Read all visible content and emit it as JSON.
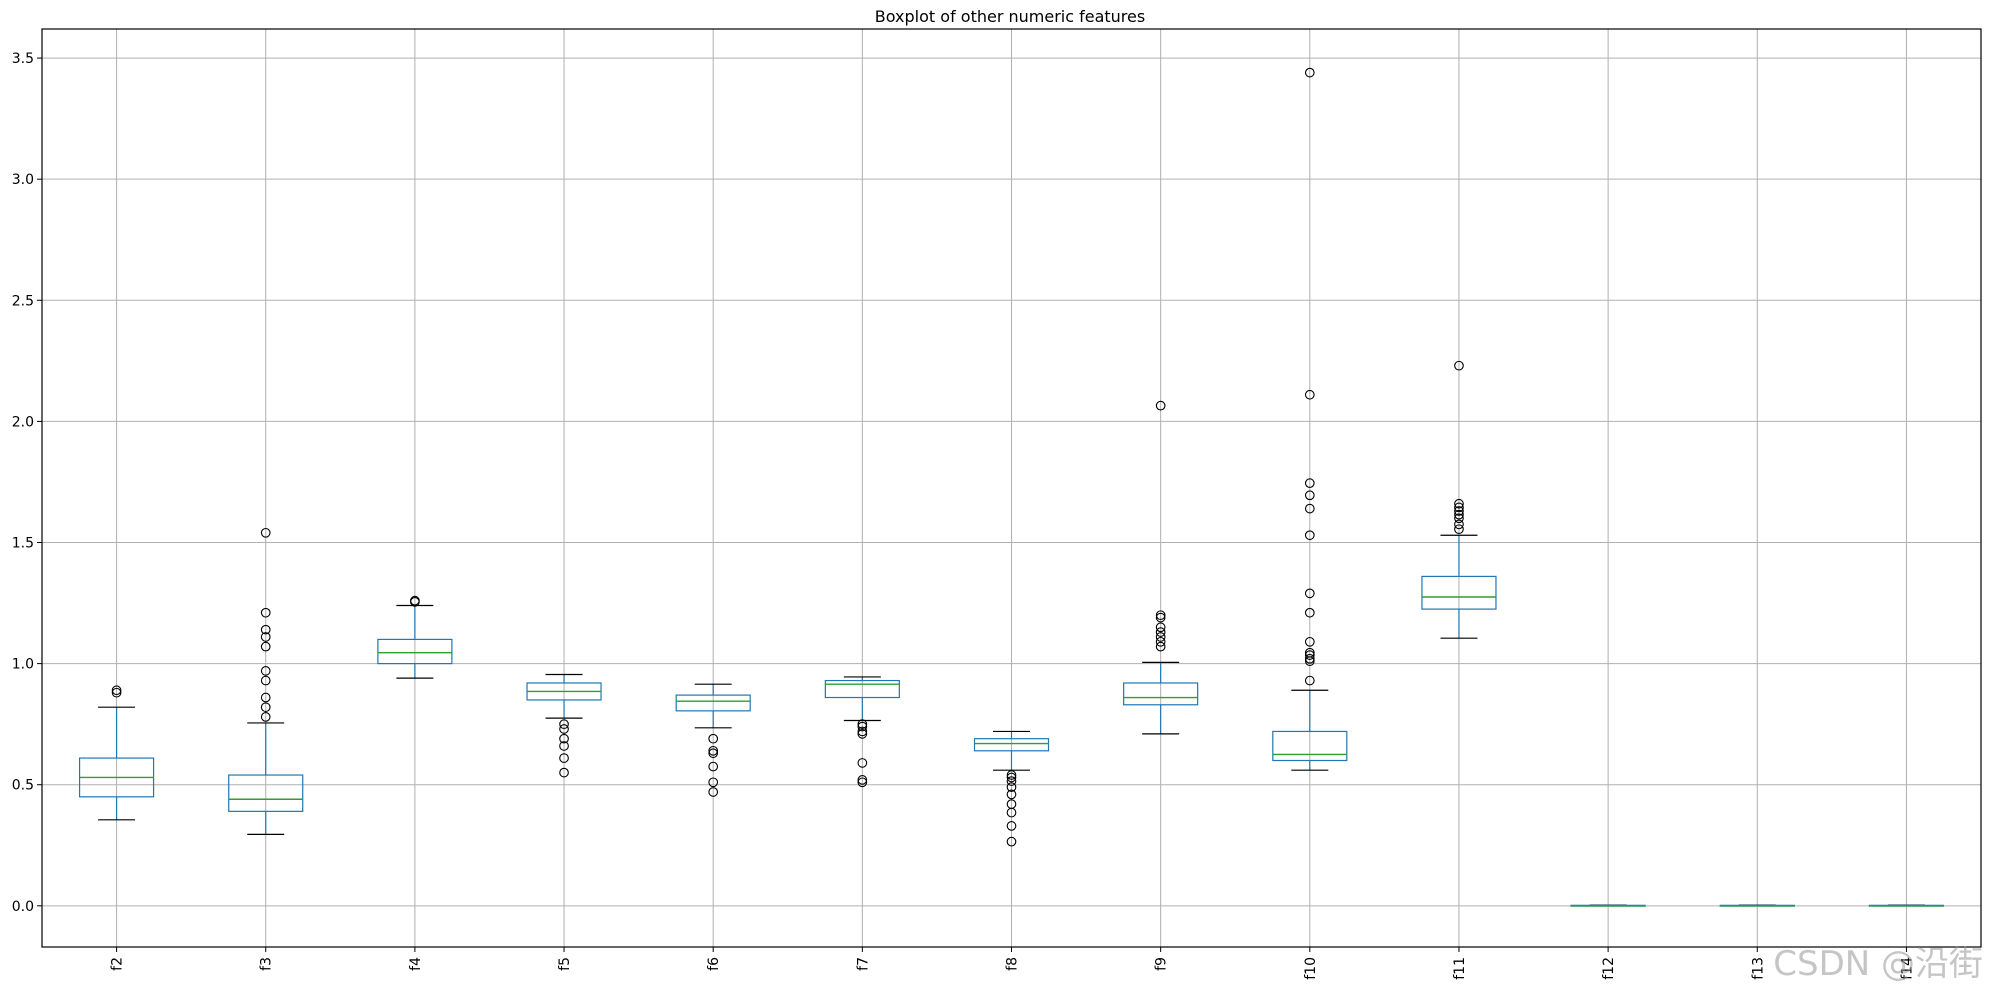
{
  "chart_data": {
    "type": "boxplot",
    "title": "Boxplot of other numeric features",
    "xlabel": "",
    "ylabel": "",
    "ylim": [
      -0.17,
      3.62
    ],
    "yticks": [
      0.0,
      0.5,
      1.0,
      1.5,
      2.0,
      2.5,
      3.0,
      3.5
    ],
    "ytick_labels": [
      "0.0",
      "0.5",
      "1.0",
      "1.5",
      "2.0",
      "2.5",
      "3.0",
      "3.5"
    ],
    "grid": true,
    "categories": [
      "f2",
      "f3",
      "f4",
      "f5",
      "f6",
      "f7",
      "f8",
      "f9",
      "f10",
      "f11",
      "f12",
      "f13",
      "f14"
    ],
    "boxes": [
      {
        "name": "f2",
        "whislo": 0.355,
        "q1": 0.45,
        "median": 0.53,
        "q3": 0.61,
        "whishi": 0.82,
        "fliers": [
          0.88,
          0.89
        ]
      },
      {
        "name": "f3",
        "whislo": 0.295,
        "q1": 0.39,
        "median": 0.44,
        "q3": 0.54,
        "whishi": 0.755,
        "fliers": [
          0.78,
          0.82,
          0.86,
          0.93,
          0.97,
          1.07,
          1.11,
          1.14,
          1.21,
          1.54
        ]
      },
      {
        "name": "f4",
        "whislo": 0.94,
        "q1": 1.0,
        "median": 1.045,
        "q3": 1.1,
        "whishi": 1.24,
        "fliers": [
          1.255,
          1.26
        ]
      },
      {
        "name": "f5",
        "whislo": 0.775,
        "q1": 0.85,
        "median": 0.885,
        "q3": 0.92,
        "whishi": 0.955,
        "fliers": [
          0.55,
          0.61,
          0.66,
          0.69,
          0.73,
          0.75
        ]
      },
      {
        "name": "f6",
        "whislo": 0.735,
        "q1": 0.805,
        "median": 0.845,
        "q3": 0.87,
        "whishi": 0.915,
        "fliers": [
          0.47,
          0.51,
          0.575,
          0.63,
          0.64,
          0.69
        ]
      },
      {
        "name": "f7",
        "whislo": 0.765,
        "q1": 0.86,
        "median": 0.915,
        "q3": 0.93,
        "whishi": 0.945,
        "fliers": [
          0.51,
          0.52,
          0.59,
          0.71,
          0.72,
          0.74,
          0.75
        ]
      },
      {
        "name": "f8",
        "whislo": 0.56,
        "q1": 0.64,
        "median": 0.67,
        "q3": 0.69,
        "whishi": 0.72,
        "fliers": [
          0.265,
          0.33,
          0.385,
          0.42,
          0.46,
          0.49,
          0.515,
          0.53,
          0.54
        ]
      },
      {
        "name": "f9",
        "whislo": 0.71,
        "q1": 0.83,
        "median": 0.86,
        "q3": 0.92,
        "whishi": 1.005,
        "fliers": [
          1.07,
          1.09,
          1.11,
          1.13,
          1.15,
          1.19,
          1.2,
          2.065
        ]
      },
      {
        "name": "f10",
        "whislo": 0.56,
        "q1": 0.6,
        "median": 0.625,
        "q3": 0.72,
        "whishi": 0.89,
        "fliers": [
          0.93,
          1.01,
          1.02,
          1.035,
          1.045,
          1.09,
          1.21,
          1.29,
          1.53,
          1.64,
          1.695,
          1.745,
          2.11,
          3.44
        ]
      },
      {
        "name": "f11",
        "whislo": 1.105,
        "q1": 1.225,
        "median": 1.275,
        "q3": 1.36,
        "whishi": 1.53,
        "fliers": [
          1.555,
          1.575,
          1.6,
          1.615,
          1.63,
          1.645,
          1.66,
          2.23
        ]
      },
      {
        "name": "f12",
        "whislo": 0.0,
        "q1": 0.0,
        "median": 0.0,
        "q3": 0.002,
        "whishi": 0.003,
        "fliers": []
      },
      {
        "name": "f13",
        "whislo": 0.0,
        "q1": 0.0,
        "median": 0.0,
        "q3": 0.002,
        "whishi": 0.003,
        "fliers": []
      },
      {
        "name": "f14",
        "whislo": 0.0,
        "q1": 0.0,
        "median": 0.0,
        "q3": 0.002,
        "whishi": 0.003,
        "fliers": []
      }
    ],
    "colors": {
      "box": "#1f77b4",
      "median": "#2ca02c",
      "whisker_cap": "#000000",
      "flier": "#000000",
      "grid": "#b0b0b0",
      "axes": "#000000"
    }
  },
  "watermark": "CSDN @沿街"
}
